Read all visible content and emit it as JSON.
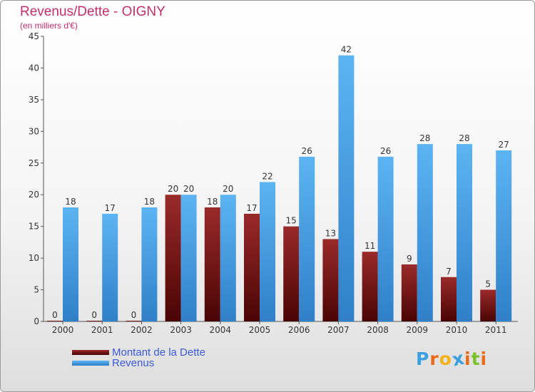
{
  "title": "Revenus/Dette - OIGNY",
  "subtitle": "(en milliers d'€)",
  "logo": {
    "text": "Proxiti",
    "letters": [
      {
        "ch": "P",
        "color": "#3aa0e0"
      },
      {
        "ch": "r",
        "color": "#e86a1a"
      },
      {
        "ch": "o",
        "color": "#f2b21b"
      },
      {
        "ch": "x",
        "color": "#3aa0e0"
      },
      {
        "ch": "i",
        "color": "#e86a1a"
      },
      {
        "ch": "t",
        "color": "#7bbf2a"
      },
      {
        "ch": "i",
        "color": "#e86a1a"
      }
    ]
  },
  "colors": {
    "dette": "#7a1010",
    "revenus": "#3d9ee5",
    "title": "#c0306a",
    "legend_text": "#3a5ad8"
  },
  "chart_data": {
    "type": "bar",
    "title": "Revenus/Dette - OIGNY",
    "subtitle": "(en milliers d'€)",
    "categories": [
      "2000",
      "2001",
      "2002",
      "2003",
      "2004",
      "2005",
      "2006",
      "2007",
      "2008",
      "2009",
      "2010",
      "2011"
    ],
    "series": [
      {
        "name": "Montant de la Dette",
        "values": [
          0,
          0,
          0,
          20,
          18,
          17,
          15,
          13,
          11,
          9,
          7,
          5
        ]
      },
      {
        "name": "Revenus",
        "values": [
          18,
          17,
          18,
          20,
          20,
          22,
          26,
          42,
          26,
          28,
          28,
          27
        ]
      }
    ],
    "ylim": [
      0,
      45
    ],
    "yticks": [
      "0",
      "5",
      "10",
      "15",
      "20",
      "25",
      "30",
      "35",
      "40",
      "45"
    ],
    "grid": false,
    "legend_position": "bottom-left"
  }
}
